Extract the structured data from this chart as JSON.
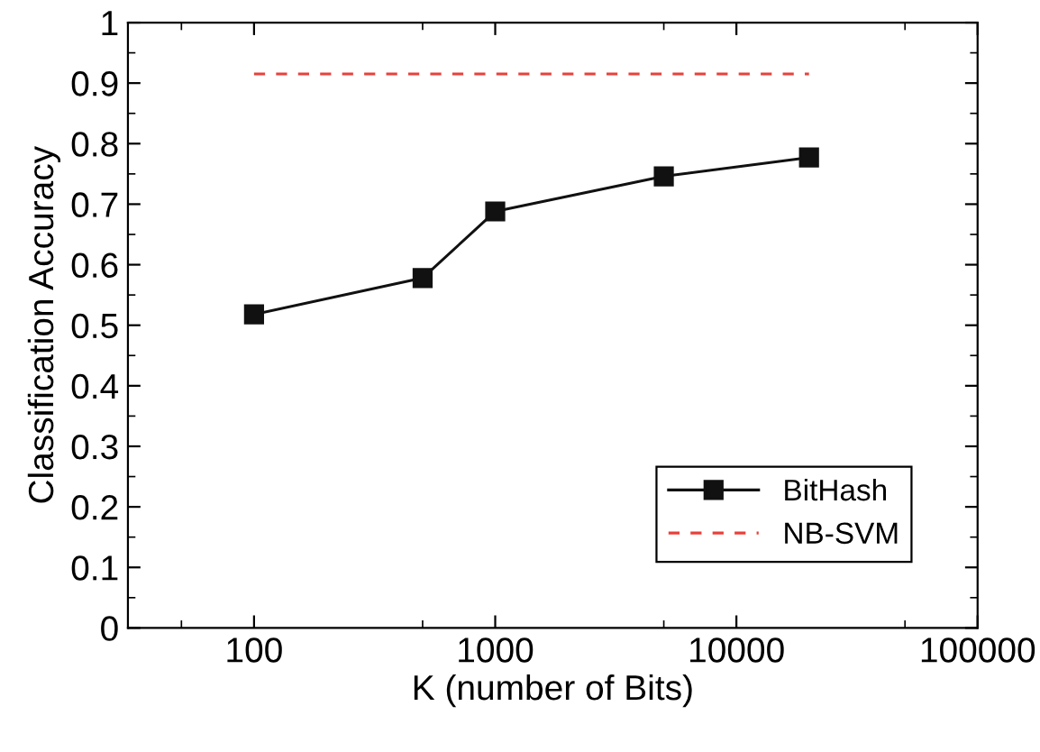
{
  "chart_data": {
    "type": "line",
    "xlabel": "K (number of Bits)",
    "ylabel": "Classification Accuracy",
    "log": "x",
    "xlim": [
      30,
      100000
    ],
    "xticks": [
      100,
      1000,
      10000,
      100000
    ],
    "ylim": [
      0,
      1
    ],
    "yticks": [
      0,
      0.1,
      0.2,
      0.3,
      0.4,
      0.5,
      0.6,
      0.7,
      0.8,
      0.9,
      1
    ],
    "grid": false,
    "legend": "bottom right",
    "series": [
      {
        "name": "BitHash",
        "color": "#111111",
        "x": [
          100,
          500,
          1000,
          5000,
          20000
        ],
        "values": [
          0.518,
          0.578,
          0.688,
          0.746,
          0.777
        ],
        "marker": "square",
        "line_style": "solid"
      },
      {
        "name": "NB-SVM",
        "color": "#e8413a",
        "x": [
          100,
          20000
        ],
        "values": [
          0.915,
          0.915
        ],
        "marker": "none",
        "line_style": "dashed"
      }
    ]
  }
}
